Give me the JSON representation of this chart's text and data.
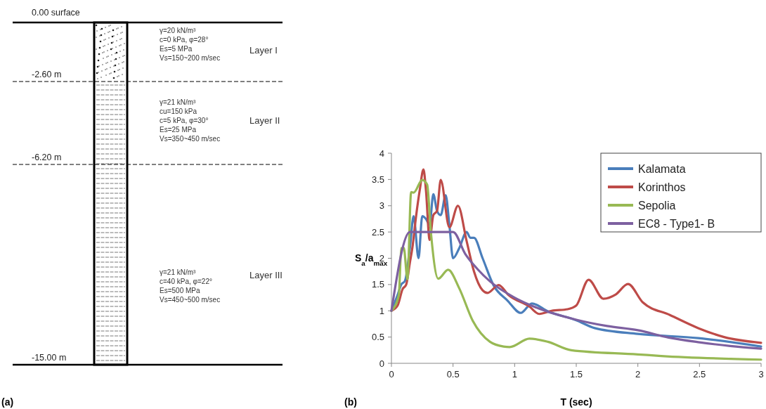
{
  "chart_data": [
    {
      "type": "other",
      "title": "(a)",
      "annotations": [
        "0.00 surface",
        "-2.60 m",
        "-6.20 m",
        "-15.00 m",
        "γ=20 kN/m³\nc=0 kPa, φ=28°\nEs=5 MPa\nVs=150~200 m/sec",
        "Layer I",
        "γ=21 kN/m³\ncu=150 kPa\nc=5 kPa, φ=30°\nEs=25 MPa\nVs=350~450 m/sec",
        "Layer II",
        "γ=21 kN/m³\nc=40 kPa, φ=22°\nEs=500 MPa\nVs=450~500 m/sec",
        "Layer III"
      ]
    },
    {
      "type": "line",
      "title": "(b)",
      "xlabel": "T (sec)",
      "ylabel": "S$_{a}$/a$_{max}$",
      "xlim": [
        0,
        3
      ],
      "ylim": [
        0,
        4
      ],
      "xticks": [
        0,
        0.5,
        1,
        1.5,
        2,
        2.5,
        3
      ],
      "yticks": [
        0,
        0.5,
        1,
        1.5,
        2,
        2.5,
        3,
        3.5,
        4
      ],
      "legend": "top right",
      "series": [
        {
          "name": "Kalamata",
          "color": "#4a7ebb",
          "x": [
            0,
            0.05,
            0.08,
            0.11,
            0.15,
            0.18,
            0.22,
            0.25,
            0.28,
            0.31,
            0.34,
            0.37,
            0.4,
            0.44,
            0.47,
            0.5,
            0.55,
            0.61,
            0.64,
            0.67,
            0.74,
            0.83,
            0.94,
            1.05,
            1.14,
            1.27,
            1.5,
            1.65,
            2.0,
            2.49,
            3.0
          ],
          "values": [
            1,
            1.3,
            1.5,
            1.57,
            2.2,
            2.8,
            2.0,
            2.8,
            2.75,
            2.64,
            3.22,
            2.9,
            2.82,
            3.2,
            2.64,
            2.0,
            2.19,
            2.5,
            2.39,
            2.39,
            2.0,
            1.48,
            1.2,
            0.96,
            1.14,
            0.99,
            0.82,
            0.67,
            0.56,
            0.48,
            0.32
          ]
        },
        {
          "name": "Korinthos",
          "color": "#be4b48",
          "x": [
            0,
            0.05,
            0.09,
            0.12,
            0.15,
            0.17,
            0.2,
            0.23,
            0.26,
            0.28,
            0.31,
            0.34,
            0.37,
            0.4,
            0.47,
            0.54,
            0.61,
            0.67,
            0.74,
            0.78,
            0.87,
            0.95,
            1.12,
            1.2,
            1.3,
            1.43,
            1.5,
            1.6,
            1.72,
            1.82,
            1.92,
            2.04,
            2.26,
            2.49,
            2.7,
            3.0
          ],
          "values": [
            1,
            1.1,
            1.41,
            1.5,
            1.92,
            2.2,
            2.8,
            3.3,
            3.69,
            3.3,
            2.35,
            2.82,
            2.9,
            3.49,
            2.59,
            3.0,
            2.33,
            1.75,
            1.39,
            1.34,
            1.49,
            1.3,
            1.08,
            0.94,
            1.0,
            1.03,
            1.1,
            1.59,
            1.23,
            1.31,
            1.51,
            1.16,
            0.92,
            0.67,
            0.5,
            0.39
          ]
        },
        {
          "name": "Sepolia",
          "color": "#98b954",
          "x": [
            0,
            0.06,
            0.08,
            0.1,
            0.13,
            0.16,
            0.18,
            0.25,
            0.29,
            0.32,
            0.38,
            0.46,
            0.55,
            0.66,
            0.8,
            0.91,
            0.96,
            1.12,
            1.27,
            1.46,
            2.0,
            2.19,
            3.0
          ],
          "values": [
            1,
            1.3,
            2.19,
            2.2,
            1.6,
            3.26,
            3.25,
            3.49,
            3.4,
            2.5,
            1.61,
            1.78,
            1.43,
            0.81,
            0.41,
            0.32,
            0.31,
            0.47,
            0.41,
            0.25,
            0.17,
            0.14,
            0.07
          ]
        },
        {
          "name": "EC8 - Type1- B",
          "color": "#7d60a0",
          "x": [
            0,
            0.15,
            0.5,
            0.6,
            0.7,
            0.8,
            1,
            1.2,
            1.5,
            1.75,
            2,
            2.25,
            2.5,
            2.75,
            3
          ],
          "values": [
            1,
            2.5,
            2.5,
            2.08,
            1.79,
            1.56,
            1.25,
            1.04,
            0.83,
            0.71,
            0.63,
            0.49,
            0.4,
            0.33,
            0.28
          ]
        }
      ]
    }
  ]
}
